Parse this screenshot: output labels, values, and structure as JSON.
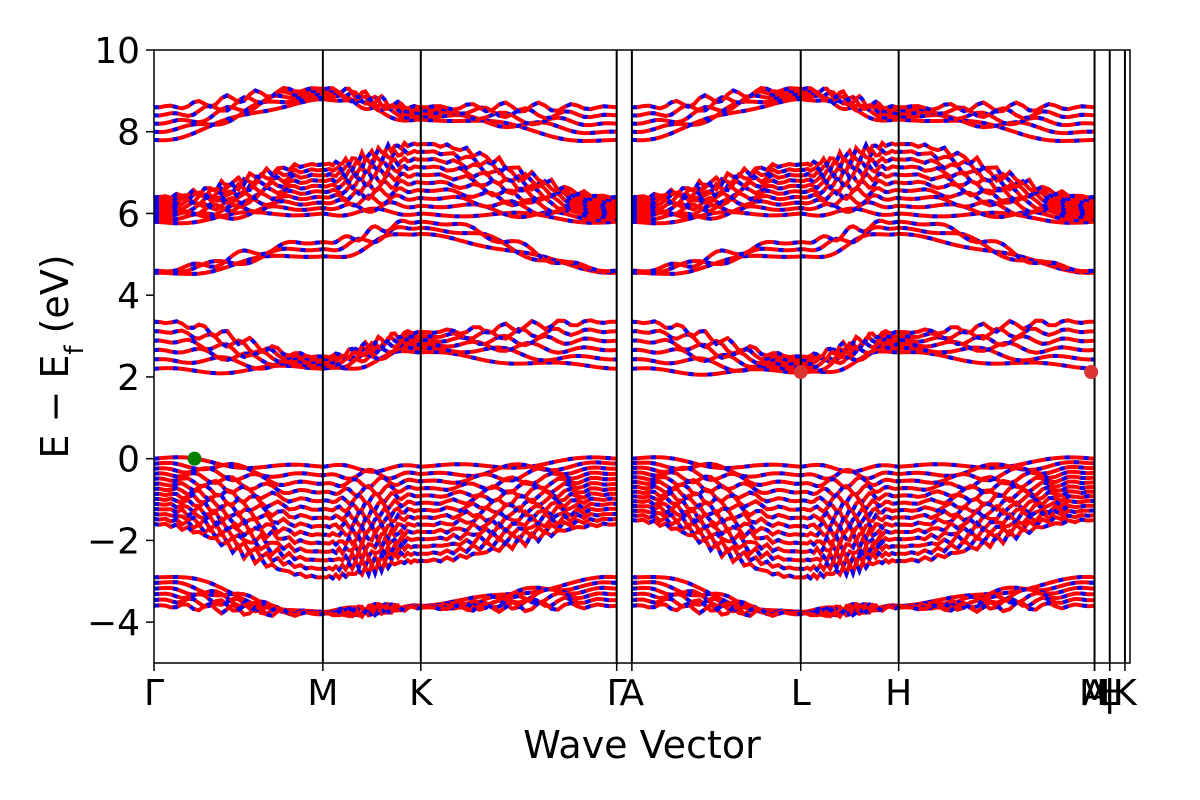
{
  "chart_data": {
    "type": "line",
    "title": "",
    "xlabel": "Wave Vector",
    "ylabel": {
      "prefix": "E − E",
      "subscript": "f",
      "suffix": " (eV)"
    },
    "ylim": [
      -5,
      10
    ],
    "yticks": [
      -4,
      -2,
      0,
      2,
      4,
      6,
      8,
      10
    ],
    "ytick_labels": [
      "−4",
      "−2",
      "0",
      "2",
      "4",
      "6",
      "8",
      "10"
    ],
    "xlim": [
      0,
      5.78
    ],
    "kpoints": [
      {
        "label": "Γ",
        "x": 0.0
      },
      {
        "label": "M",
        "x": 1.0
      },
      {
        "label": "K",
        "x": 1.58
      },
      {
        "label": "Γ",
        "x": 2.74
      },
      {
        "label": "A",
        "x": 2.83
      },
      {
        "label": "L",
        "x": 3.83
      },
      {
        "label": "H",
        "x": 4.41
      },
      {
        "label": "A",
        "x": 5.57
      },
      {
        "label": "M",
        "x": 5.57
      },
      {
        "label": "|",
        "x": 5.66
      },
      {
        "label": "L",
        "x": 5.66
      },
      {
        "label": "|",
        "x": 5.66
      },
      {
        "label": "H",
        "x": 5.66
      },
      {
        "label": "K",
        "x": 5.75
      }
    ],
    "spin_up_color": "#ff0000",
    "spin_down_color": "#0000ff",
    "grid": false,
    "legend": "none",
    "markers": [
      {
        "name": "VBM",
        "x": 0.24,
        "y": 0.0,
        "color": "#008000"
      },
      {
        "name": "CBM",
        "x": 3.83,
        "y": 2.12,
        "color": "#dd3333"
      },
      {
        "name": "CBM",
        "x": 5.55,
        "y": 2.12,
        "color": "#dd3333"
      }
    ],
    "band_groups": [
      {
        "name": "deep-valence",
        "gamma": [
          -2.9,
          -3.6
        ],
        "m": [
          -3.75,
          -3.8
        ],
        "k": [
          -3.6,
          -3.65
        ],
        "a": [
          -2.9,
          -3.6
        ],
        "l": [
          -3.75,
          -3.8
        ],
        "h": [
          -3.6,
          -3.65
        ],
        "count": 6
      },
      {
        "name": "valence",
        "gamma": [
          0.0,
          -1.6
        ],
        "m": [
          -0.2,
          -2.9
        ],
        "k": [
          -0.2,
          -2.5
        ],
        "a": [
          0.0,
          -1.5
        ],
        "l": [
          -0.2,
          -2.9
        ],
        "h": [
          -0.2,
          -2.5
        ],
        "count": 14
      },
      {
        "name": "conduction-1",
        "gamma": [
          2.2,
          3.35
        ],
        "m": [
          2.2,
          2.5
        ],
        "k": [
          2.6,
          3.1
        ],
        "a": [
          2.2,
          3.35
        ],
        "l": [
          2.1,
          2.5
        ],
        "h": [
          2.6,
          3.1
        ],
        "count": 6
      },
      {
        "name": "conduction-2",
        "gamma": [
          4.55,
          4.6
        ],
        "m": [
          4.95,
          5.3
        ],
        "k": [
          5.5,
          5.8
        ],
        "a": [
          4.55,
          4.6
        ],
        "l": [
          4.95,
          5.3
        ],
        "h": [
          5.5,
          5.8
        ],
        "count": 3
      },
      {
        "name": "conduction-3",
        "gamma": [
          5.8,
          6.4
        ],
        "m": [
          6.0,
          7.2
        ],
        "k": [
          6.0,
          7.7
        ],
        "a": [
          5.8,
          6.4
        ],
        "l": [
          6.0,
          7.2
        ],
        "h": [
          6.0,
          7.7
        ],
        "count": 10
      },
      {
        "name": "conduction-4",
        "gamma": [
          7.8,
          8.6
        ],
        "m": [
          8.8,
          9.05
        ],
        "k": [
          8.3,
          8.6
        ],
        "a": [
          7.8,
          8.6
        ],
        "l": [
          8.8,
          9.05
        ],
        "h": [
          8.3,
          8.6
        ],
        "count": 5
      }
    ]
  }
}
